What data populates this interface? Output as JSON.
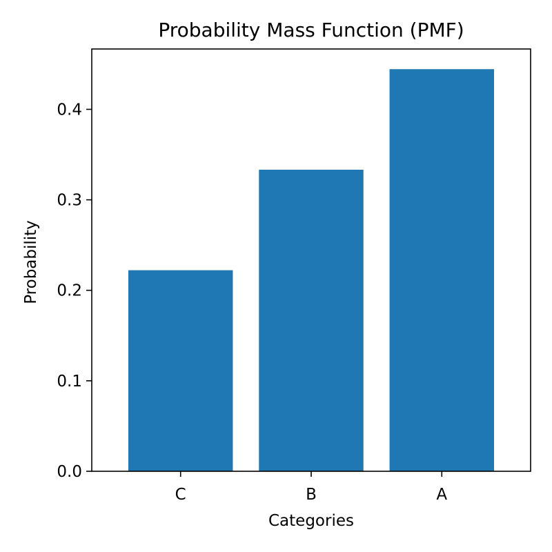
{
  "chart_data": {
    "type": "bar",
    "title": "Probability Mass Function (PMF)",
    "xlabel": "Categories",
    "ylabel": "Probability",
    "categories": [
      "C",
      "B",
      "A"
    ],
    "values": [
      0.2222,
      0.3333,
      0.4444
    ],
    "yticks": [
      "0.0",
      "0.1",
      "0.2",
      "0.3",
      "0.4"
    ],
    "ylim": [
      0,
      0.4667
    ],
    "grid": false,
    "bar_color": "#1f77b4"
  }
}
